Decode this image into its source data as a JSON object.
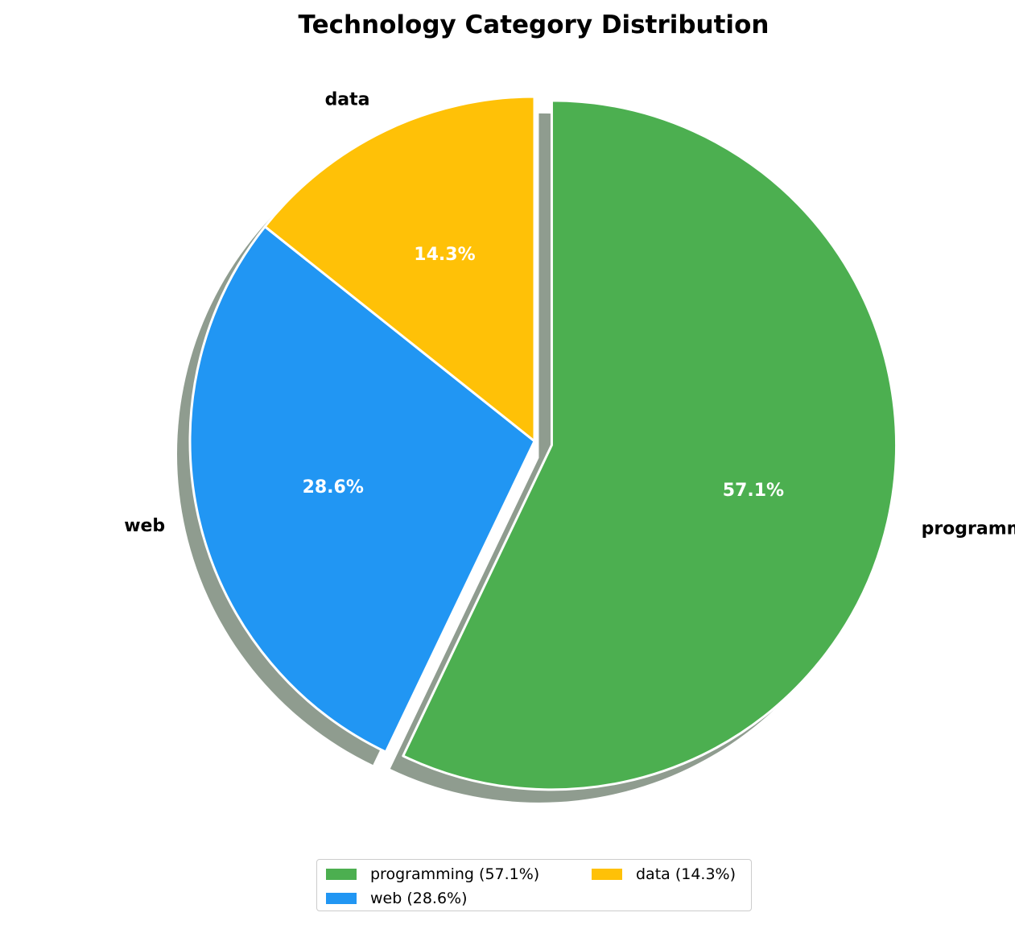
{
  "chart_data": {
    "type": "pie",
    "title": "Technology Category Distribution",
    "slices": [
      {
        "label": "programming",
        "value": 57.1,
        "pct_label": "57.1%",
        "legend_label": "programming (57.1%)",
        "color": "#4caf50",
        "exploded": true
      },
      {
        "label": "web",
        "value": 28.6,
        "pct_label": "28.6%",
        "legend_label": "web (28.6%)",
        "color": "#2196f3",
        "exploded": false
      },
      {
        "label": "data",
        "value": 14.3,
        "pct_label": "14.3%",
        "legend_label": "data (14.3%)",
        "color": "#ffc107",
        "exploded": false
      }
    ],
    "start_angle_deg": 90,
    "direction": "clockwise",
    "shadow": true,
    "legend_placement": "bottom-center",
    "legend_columns": 2
  }
}
